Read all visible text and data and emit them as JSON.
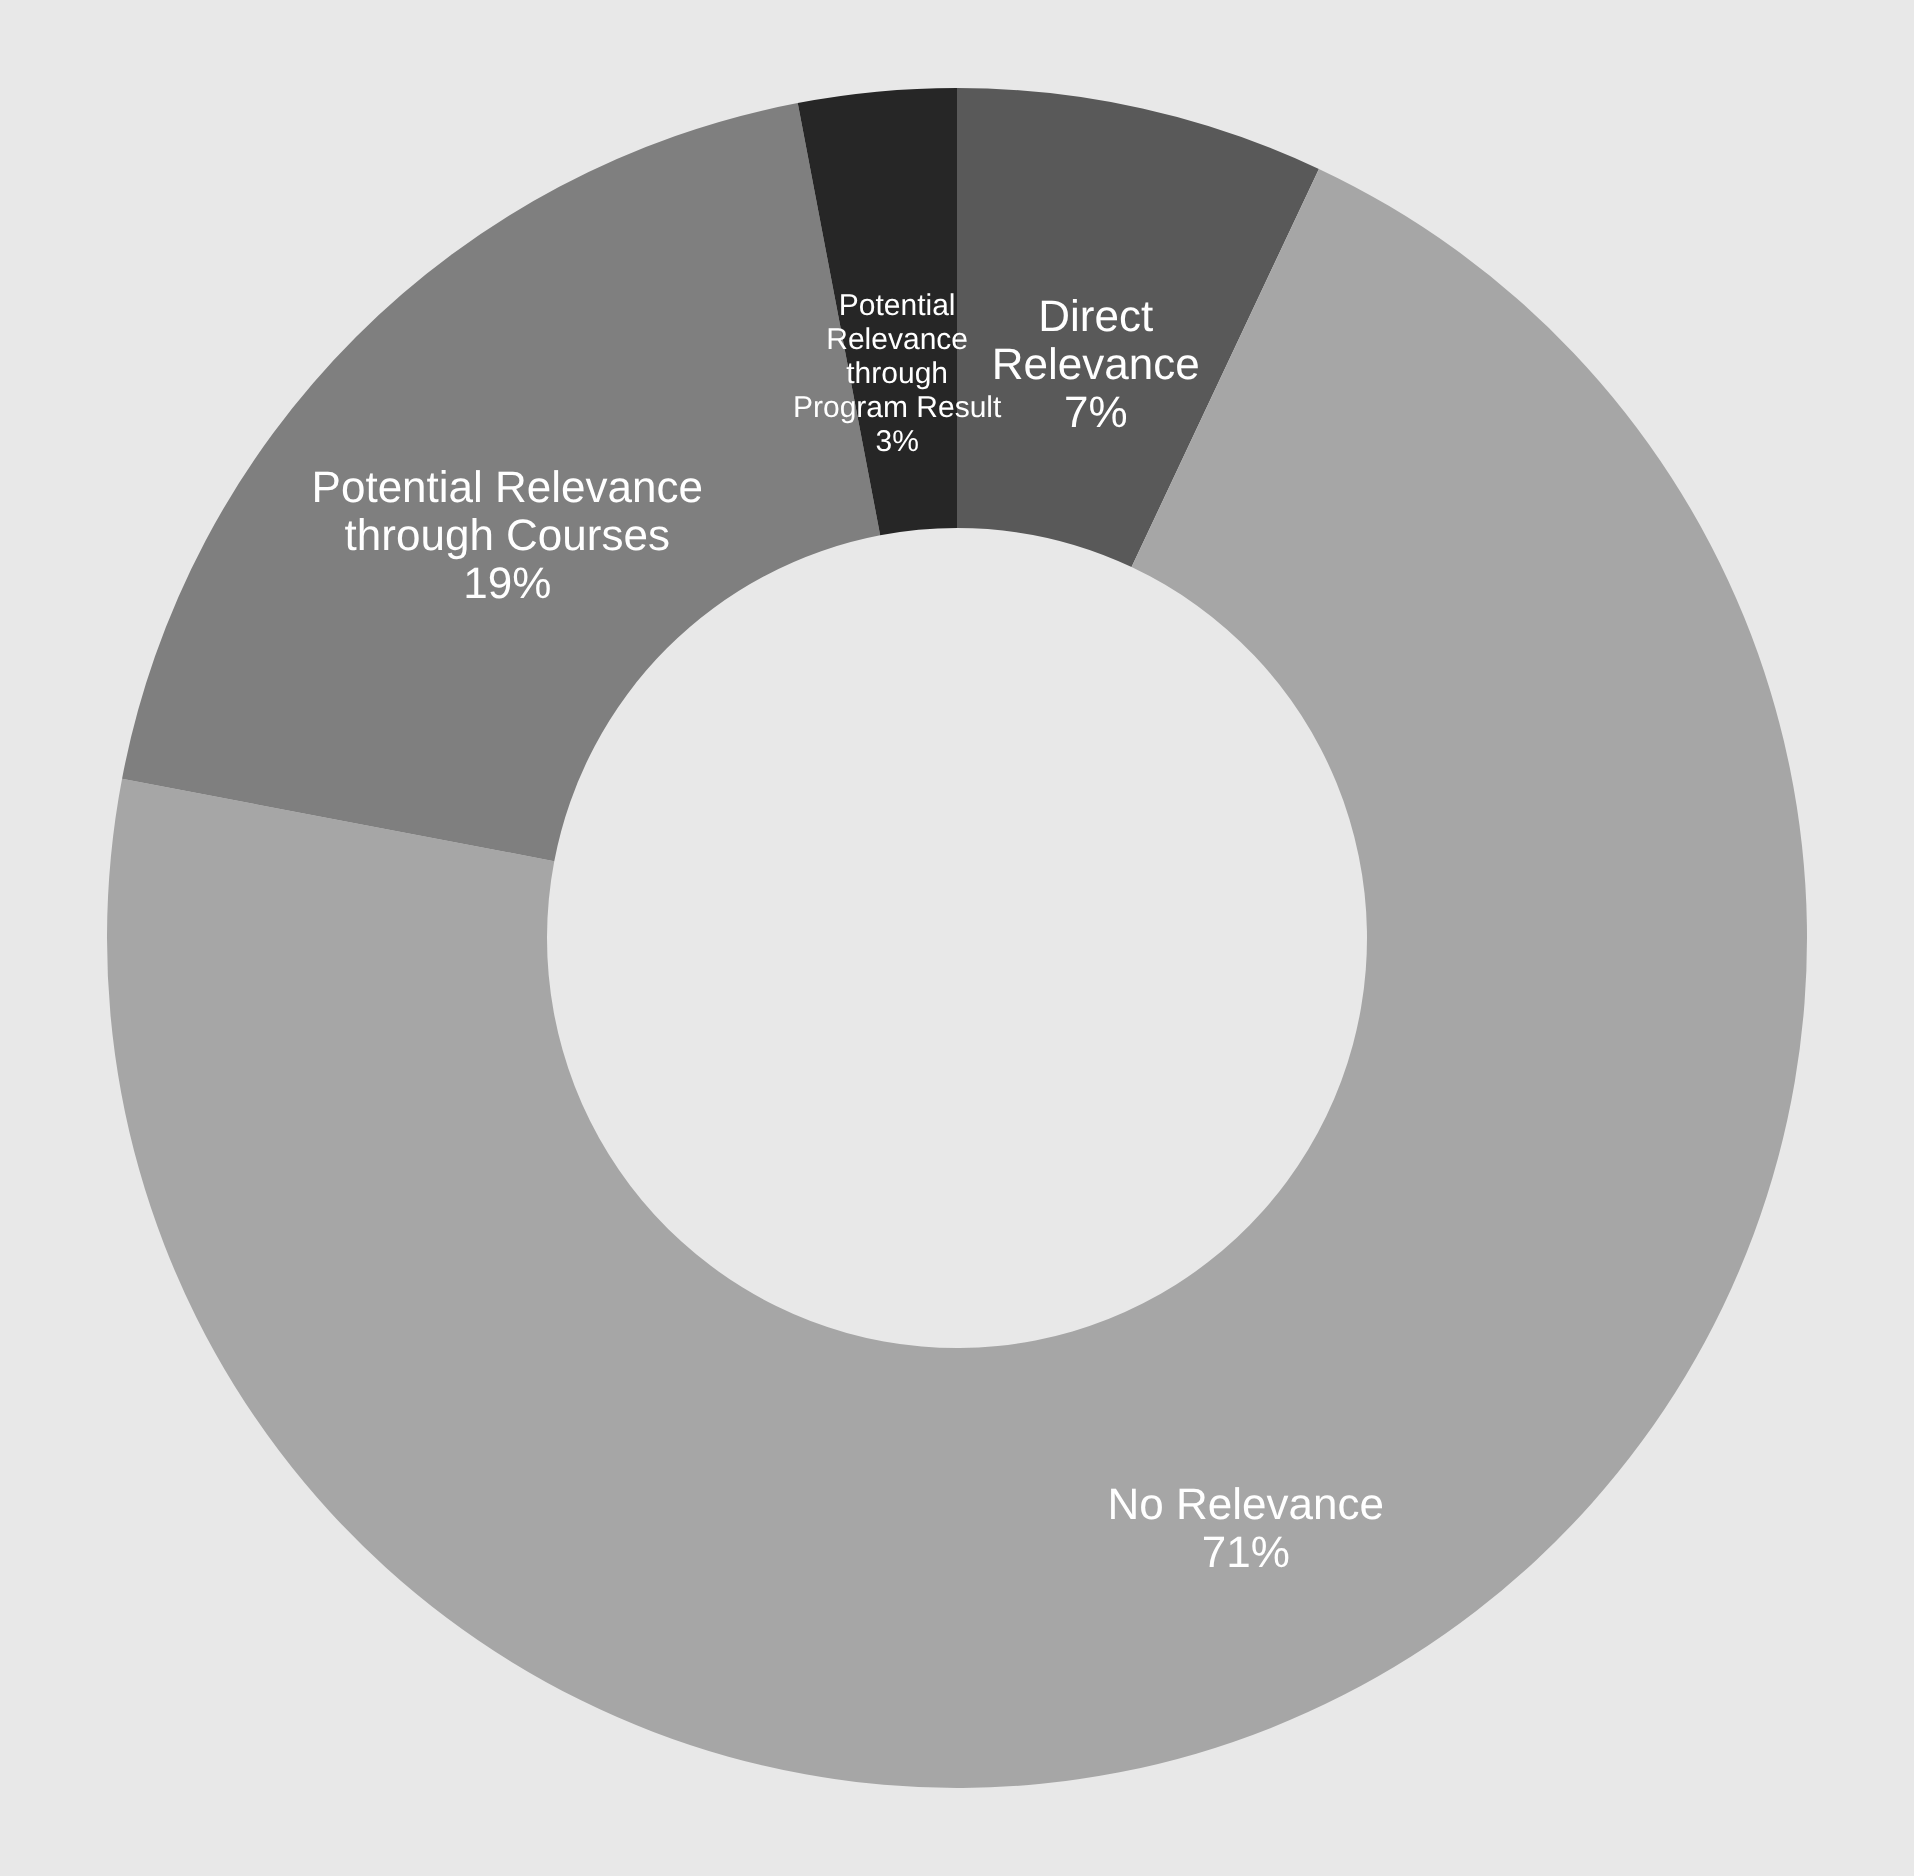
{
  "chart_data": {
    "type": "donut",
    "categories": [
      "Direct Relevance",
      "No Relevance",
      "Potential Relevance through Courses",
      "Potential Relevance through Program Result"
    ],
    "values": [
      7,
      71,
      19,
      3
    ],
    "colors": [
      "#595959",
      "#a6a6a6",
      "#7f7f7f",
      "#262626"
    ],
    "value_labels": [
      "7%",
      "71%",
      "19%",
      "3%"
    ],
    "legend": false
  }
}
